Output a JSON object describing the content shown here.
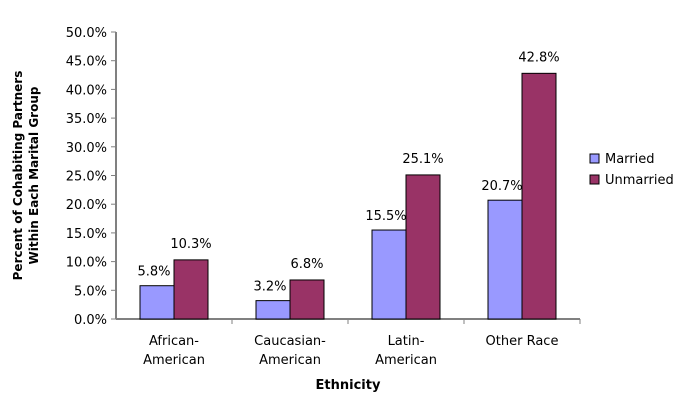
{
  "chart_data": {
    "type": "bar",
    "categories": [
      [
        "African-",
        "American"
      ],
      [
        "Caucasian-",
        "American"
      ],
      [
        "Latin-",
        "American"
      ],
      [
        "Other  Race"
      ]
    ],
    "series": [
      {
        "name": "Married",
        "color": "#9999FF",
        "values": [
          5.8,
          3.2,
          15.5,
          20.7
        ],
        "labels": [
          "5.8%",
          "3.2%",
          "15.5%",
          "20.7%"
        ]
      },
      {
        "name": "Unmarried",
        "color": "#993366",
        "values": [
          10.3,
          6.8,
          25.1,
          42.8
        ],
        "labels": [
          "10.3%",
          "6.8%",
          "25.1%",
          "42.8%"
        ]
      }
    ],
    "xlabel": "Ethnicity",
    "ylabel": [
      "Percent of Cohabiting Partners",
      "Within Each Marital Group"
    ],
    "ylim": [
      0,
      50
    ],
    "yticks": [
      "0.0%",
      "5.0%",
      "10.0%",
      "15.0%",
      "20.0%",
      "25.0%",
      "30.0%",
      "35.0%",
      "40.0%",
      "45.0%",
      "50.0%"
    ],
    "grid": false,
    "legend": "right"
  }
}
